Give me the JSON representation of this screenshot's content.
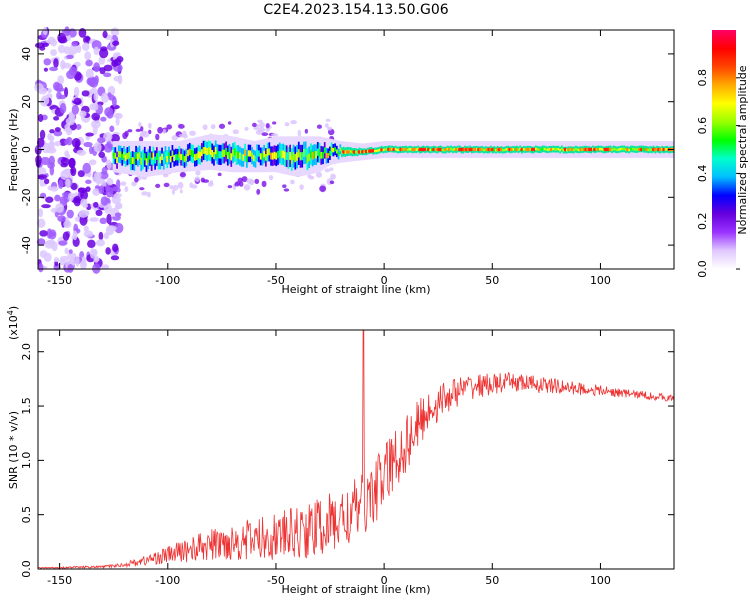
{
  "title": "C2E4.2023.154.13.50.G06",
  "chart_data": [
    {
      "type": "heatmap",
      "xlabel": "Height of straight line (km)",
      "ylabel": "Frequency (Hz)",
      "xlim": [
        -160,
        134
      ],
      "ylim": [
        -50,
        50
      ],
      "x_ticks": [
        -150,
        -100,
        -50,
        0,
        50,
        100
      ],
      "y_ticks": [
        -40,
        -20,
        0,
        20,
        40
      ],
      "colorbar": {
        "label": "Normalized spectral amplitude",
        "range": [
          0,
          1
        ],
        "ticks": [
          0.0,
          0.2,
          0.4,
          0.6,
          0.8
        ],
        "colors": [
          "#ffffff",
          "#e0c8ff",
          "#9933ff",
          "#6600dd",
          "#0000ff",
          "#00bfff",
          "#00ffcc",
          "#00ff00",
          "#99ff00",
          "#ffff00",
          "#ffaa00",
          "#ff4400",
          "#ff0000",
          "#ff0066"
        ]
      },
      "band": {
        "center_x": [
          -125,
          -110,
          -95,
          -80,
          -70,
          -60,
          -50,
          -40,
          -30,
          -25,
          -20,
          -10,
          0,
          10,
          30,
          60,
          100,
          134
        ],
        "center_y": [
          -3,
          -4,
          -3,
          -1,
          -2,
          -3,
          -2,
          -3,
          -2,
          -1,
          -1,
          -1,
          0,
          0,
          0,
          0,
          0,
          0
        ],
        "half_width": [
          5,
          6,
          5,
          6,
          6,
          5,
          6,
          7,
          6,
          4,
          3,
          2,
          2,
          2,
          2,
          2,
          2,
          2
        ]
      },
      "noise_region_x": [
        -160,
        -122
      ]
    },
    {
      "type": "line",
      "xlabel": "Height of straight line (km)",
      "ylabel": "SNR (10 * v/v)",
      "y_multiplier": "(x10",
      "y_multiplier_exp": "4",
      "y_multiplier_close": ")",
      "xlim": [
        -160,
        134
      ],
      "ylim": [
        0,
        2.2
      ],
      "x_ticks": [
        -150,
        -100,
        -50,
        0,
        50,
        100
      ],
      "y_ticks": [
        "0.0",
        "0.5",
        "1.0",
        "1.5",
        "2.0"
      ],
      "series": [
        {
          "color": "#ee3333",
          "envelope_x": [
            -160,
            -130,
            -120,
            -110,
            -100,
            -90,
            -80,
            -70,
            -60,
            -50,
            -40,
            -30,
            -20,
            -15,
            -10,
            -5,
            0,
            5,
            10,
            15,
            20,
            30,
            40,
            50,
            60,
            70,
            80,
            90,
            100,
            110,
            120,
            134
          ],
          "envelope_y": [
            0.01,
            0.02,
            0.04,
            0.08,
            0.13,
            0.18,
            0.22,
            0.25,
            0.27,
            0.3,
            0.33,
            0.38,
            0.45,
            0.5,
            0.6,
            0.7,
            0.85,
            1.0,
            1.15,
            1.3,
            1.45,
            1.6,
            1.68,
            1.7,
            1.72,
            1.7,
            1.68,
            1.66,
            1.64,
            1.62,
            1.6,
            1.57
          ],
          "noise_amplitude": [
            0.005,
            0.01,
            0.02,
            0.05,
            0.08,
            0.12,
            0.15,
            0.17,
            0.2,
            0.22,
            0.25,
            0.28,
            0.3,
            0.3,
            0.3,
            0.3,
            0.32,
            0.3,
            0.28,
            0.25,
            0.2,
            0.15,
            0.12,
            0.1,
            0.09,
            0.08,
            0.07,
            0.06,
            0.05,
            0.04,
            0.04,
            0.03
          ],
          "peak": {
            "x": -9.5,
            "y": 2.2
          }
        }
      ]
    }
  ]
}
